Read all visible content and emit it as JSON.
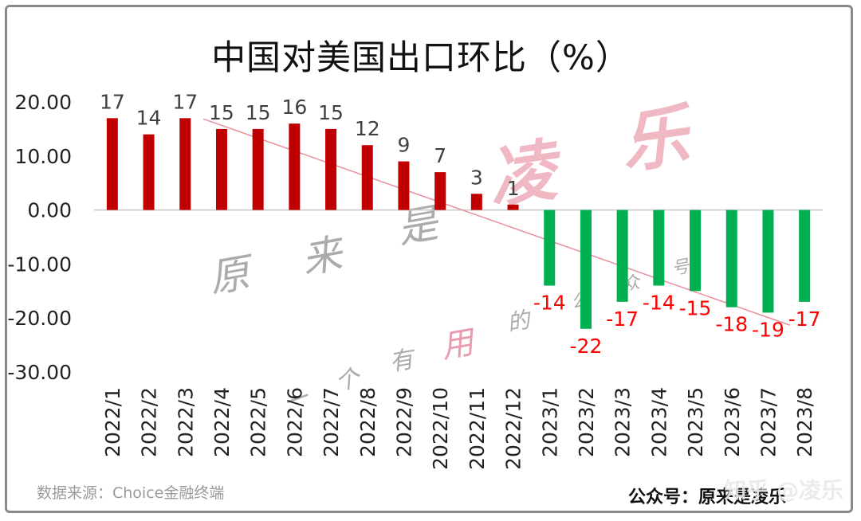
{
  "title": "中国对美国出口环比（%）",
  "source_note": "数据来源：Choice金融终端",
  "account_label": "公众号：原来是凌乐",
  "zhihu_mark": "知乎 @凌乐",
  "watermark": {
    "big_1": "凌",
    "big_2": "乐",
    "chars": [
      "原",
      "来",
      "是",
      "一",
      "个",
      "有",
      "用",
      "的",
      "公",
      "众",
      "号"
    ]
  },
  "colors": {
    "positive": "#c00000",
    "negative": "#00b050",
    "positive_label": "#404040",
    "negative_label": "#ff0000",
    "trendline": "#e8909a"
  },
  "chart_data": {
    "type": "bar",
    "categories": [
      "2022/1",
      "2022/2",
      "2022/3",
      "2022/4",
      "2022/5",
      "2022/6",
      "2022/7",
      "2022/8",
      "2022/9",
      "2022/10",
      "2022/11",
      "2022/12",
      "2023/1",
      "2023/2",
      "2023/3",
      "2023/4",
      "2023/5",
      "2023/6",
      "2023/7",
      "2023/8"
    ],
    "values": [
      17,
      14,
      17,
      15,
      15,
      16,
      15,
      12,
      9,
      7,
      3,
      1,
      -14,
      -22,
      -17,
      -14,
      -15,
      -18,
      -19,
      -17
    ],
    "data_labels": [
      "17",
      "14",
      "17",
      "15",
      "15",
      "16",
      "15",
      "12",
      "9",
      "7",
      "3",
      "1",
      "-14",
      "-22",
      "-17",
      "-14",
      "-15",
      "-18",
      "-19",
      "-17"
    ],
    "ylim": [
      -30,
      20
    ],
    "yticks": [
      20,
      10,
      0,
      -10,
      -20,
      -30
    ],
    "ytick_labels": [
      "20.00",
      "10.00",
      "0.00",
      "-10.00",
      "-20.00",
      "-30.00"
    ],
    "trendline": true,
    "grid": false,
    "legend": "none"
  }
}
